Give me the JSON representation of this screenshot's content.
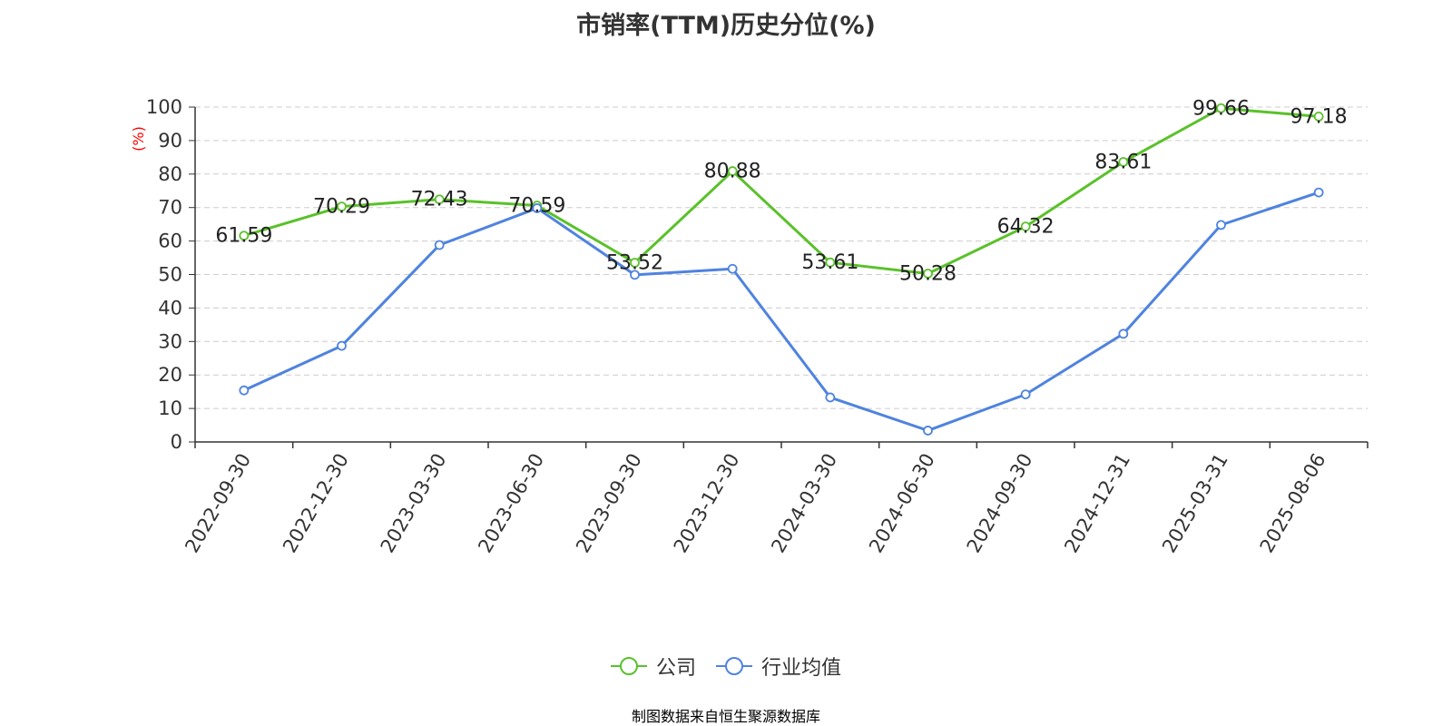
{
  "colors": {
    "company": "#5ac12a",
    "industry": "#4f83df",
    "axis": "#333333",
    "grid": "#cccccc",
    "unit": "#ff0000",
    "source": "#c8902a"
  },
  "source_text": "制图数据来自恒生聚源数据库",
  "chart_data": {
    "type": "line",
    "title": "市销率(TTM)历史分位(%)",
    "ylabel": "(%)",
    "xlabel": "",
    "ylim": [
      0,
      100
    ],
    "yticks": [
      0,
      10,
      20,
      30,
      40,
      50,
      60,
      70,
      80,
      90,
      100
    ],
    "grid": true,
    "legend_position": "bottom",
    "categories": [
      "2022-09-30",
      "2022-12-30",
      "2023-03-30",
      "2023-06-30",
      "2023-09-30",
      "2023-12-30",
      "2024-03-30",
      "2024-06-30",
      "2024-09-30",
      "2024-12-31",
      "2025-03-31",
      "2025-08-06"
    ],
    "series": [
      {
        "name": "公司",
        "color": "#5ac12a",
        "show_labels": true,
        "values": [
          61.59,
          70.29,
          72.43,
          70.59,
          53.52,
          80.88,
          53.61,
          50.28,
          64.32,
          83.61,
          99.66,
          97.18
        ]
      },
      {
        "name": "行业均值",
        "color": "#4f83df",
        "show_labels": false,
        "values": [
          15.4,
          28.7,
          58.8,
          69.8,
          49.9,
          51.7,
          13.3,
          3.4,
          14.2,
          32.3,
          64.8,
          74.5
        ]
      }
    ]
  }
}
